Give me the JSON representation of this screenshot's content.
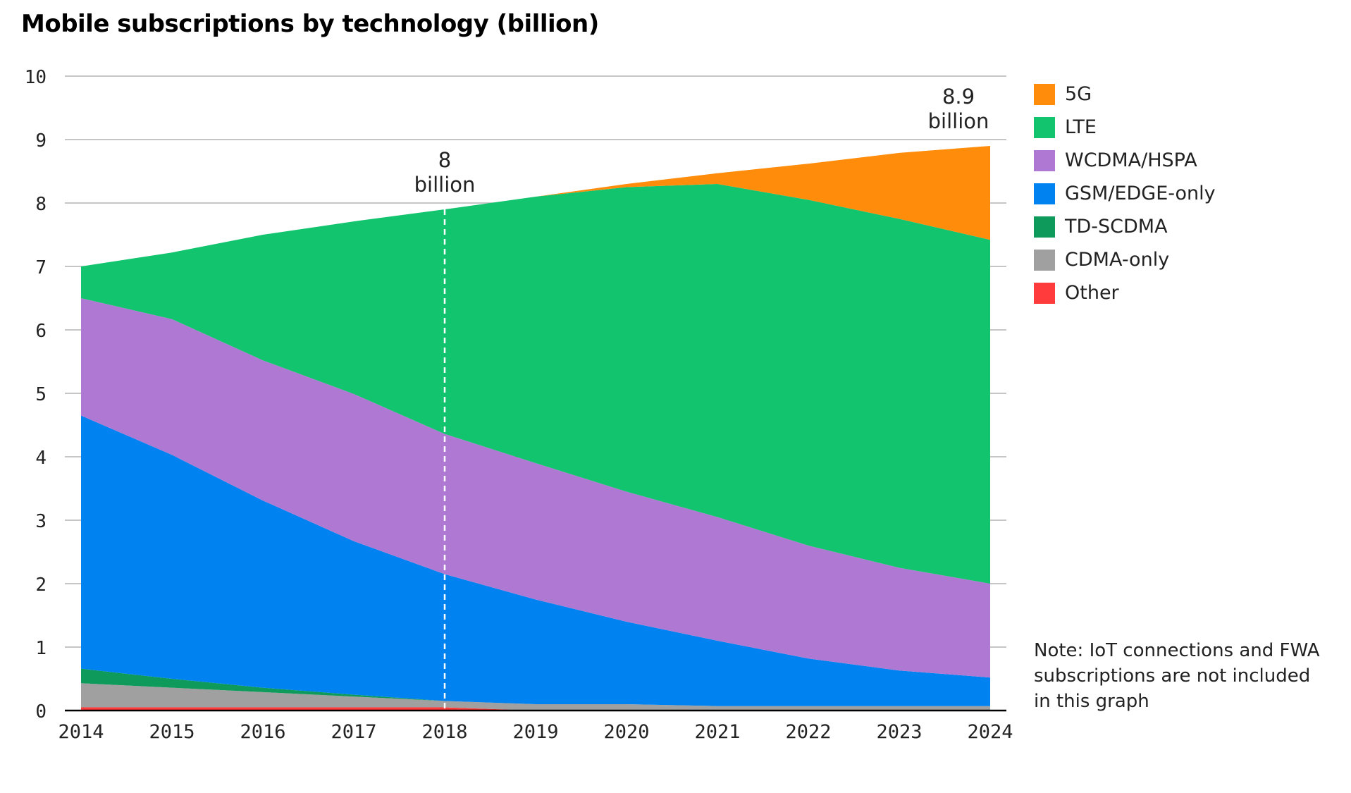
{
  "title": "Mobile subscriptions by technology (billion)",
  "note": "Note: IoT connections and FWA subscriptions are not included in this graph",
  "chart_data": {
    "type": "area",
    "stacked": true,
    "title": "Mobile subscriptions by technology (billion)",
    "xlabel": "",
    "ylabel": "",
    "categories": [
      "2014",
      "2015",
      "2016",
      "2017",
      "2018",
      "2019",
      "2020",
      "2021",
      "2022",
      "2023",
      "2024"
    ],
    "ylim": [
      0,
      10
    ],
    "yticks": [
      0,
      1,
      2,
      3,
      4,
      5,
      6,
      7,
      8,
      9,
      10
    ],
    "grid": true,
    "legend_position": "right",
    "series": [
      {
        "name": "Other",
        "color": "#ff3b3b",
        "values": [
          0.05,
          0.05,
          0.05,
          0.05,
          0.05,
          0.0,
          0.0,
          0.0,
          0.0,
          0.0,
          0.0
        ]
      },
      {
        "name": "CDMA-only",
        "color": "#a0a0a0",
        "values": [
          0.38,
          0.31,
          0.24,
          0.17,
          0.1,
          0.1,
          0.1,
          0.07,
          0.07,
          0.07,
          0.07
        ]
      },
      {
        "name": "TD-SCDMA",
        "color": "#0e9a5b",
        "values": [
          0.23,
          0.14,
          0.07,
          0.03,
          0.0,
          0.0,
          0.0,
          0.0,
          0.0,
          0.0,
          0.0
        ]
      },
      {
        "name": "GSM/EDGE-only",
        "color": "#0082f0",
        "values": [
          3.99,
          3.53,
          2.95,
          2.42,
          2.0,
          1.65,
          1.3,
          1.03,
          0.75,
          0.56,
          0.45
        ]
      },
      {
        "name": "WCDMA/HSPA",
        "color": "#af78d2",
        "values": [
          1.85,
          2.14,
          2.21,
          2.32,
          2.21,
          2.15,
          2.05,
          1.95,
          1.78,
          1.62,
          1.48
        ]
      },
      {
        "name": "LTE",
        "color": "#12c46e",
        "values": [
          0.5,
          1.05,
          1.98,
          2.72,
          3.54,
          4.2,
          4.8,
          5.25,
          5.45,
          5.5,
          5.42
        ]
      },
      {
        "name": "5G",
        "color": "#ff8c0a",
        "values": [
          0.0,
          0.0,
          0.0,
          0.0,
          0.0,
          0.0,
          0.05,
          0.17,
          0.57,
          1.04,
          1.48
        ]
      }
    ],
    "annotations": [
      {
        "x": "2018",
        "line1": "8",
        "line2": "billion",
        "dashed_line": true
      },
      {
        "x": "2024",
        "line1": "8.9",
        "line2": "billion",
        "dashed_line": false
      }
    ]
  }
}
